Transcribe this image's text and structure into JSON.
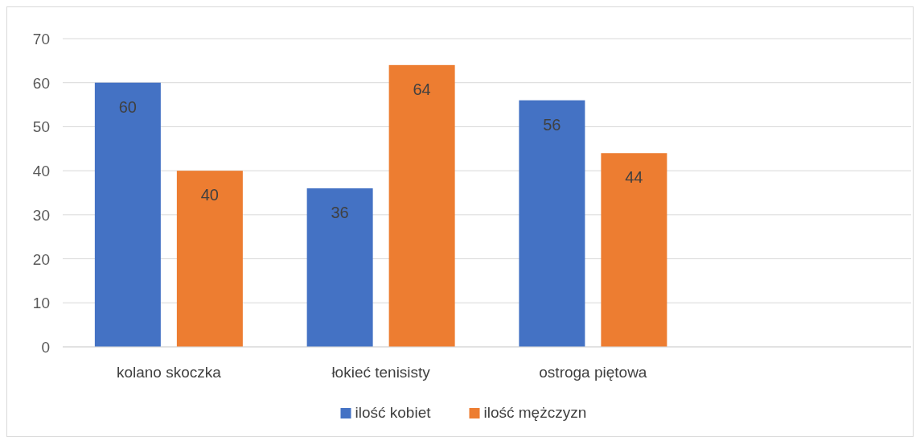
{
  "chart_data": {
    "type": "bar",
    "categories": [
      "kolano skoczka",
      "łokieć tenisisty",
      "ostroga piętowa",
      null
    ],
    "series": [
      {
        "name": "ilość kobiet",
        "color": "#4472c4",
        "values": [
          60,
          36,
          56,
          null
        ]
      },
      {
        "name": "ilość mężczyzn",
        "color": "#ed7d31",
        "values": [
          40,
          64,
          44,
          null
        ]
      }
    ],
    "ylim": [
      0,
      70
    ],
    "yticks": [
      0,
      10,
      20,
      30,
      40,
      50,
      60,
      70
    ],
    "grid": "y",
    "legend": "bottom",
    "data_labels": true
  }
}
